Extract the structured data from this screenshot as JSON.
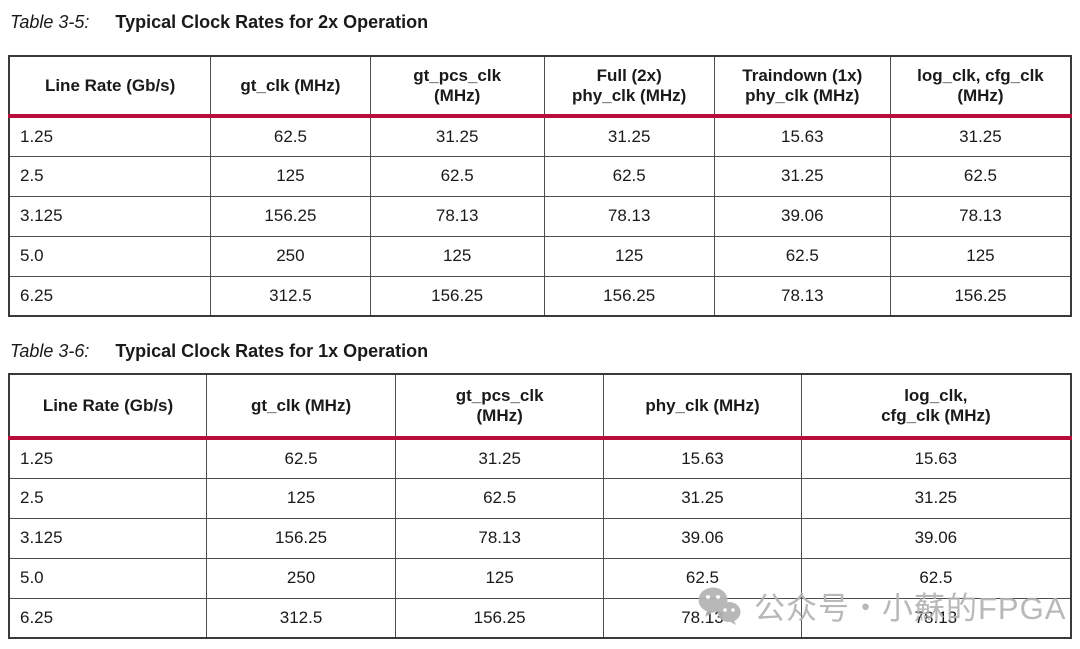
{
  "colors": {
    "accent_rule": "#b90d3c",
    "outer_border": "#3a3a3a",
    "inner_border": "#4d4d4d",
    "text": "#1a1a1a",
    "watermark": "#b2b2b2"
  },
  "tables": [
    {
      "caption_label": "Table 3-5:",
      "caption_title": "Typical Clock Rates for 2x Operation",
      "columns": [
        "Line Rate (Gb/s)",
        "gt_clk (MHz)",
        "gt_pcs_clk\n(MHz)",
        "Full (2x)\nphy_clk (MHz)",
        "Traindown (1x)\nphy_clk (MHz)",
        "log_clk, cfg_clk\n(MHz)"
      ],
      "rows": [
        [
          "1.25",
          "62.5",
          "31.25",
          "31.25",
          "15.63",
          "31.25"
        ],
        [
          "2.5",
          "125",
          "62.5",
          "62.5",
          "31.25",
          "62.5"
        ],
        [
          "3.125",
          "156.25",
          "78.13",
          "78.13",
          "39.06",
          "78.13"
        ],
        [
          "5.0",
          "250",
          "125",
          "125",
          "62.5",
          "125"
        ],
        [
          "6.25",
          "312.5",
          "156.25",
          "156.25",
          "78.13",
          "156.25"
        ]
      ]
    },
    {
      "caption_label": "Table 3-6:",
      "caption_title": "Typical Clock Rates for 1x Operation",
      "columns": [
        "Line Rate (Gb/s)",
        "gt_clk (MHz)",
        "gt_pcs_clk\n(MHz)",
        "phy_clk (MHz)",
        "log_clk,\ncfg_clk (MHz)"
      ],
      "rows": [
        [
          "1.25",
          "62.5",
          "31.25",
          "15.63",
          "15.63"
        ],
        [
          "2.5",
          "125",
          "62.5",
          "31.25",
          "31.25"
        ],
        [
          "3.125",
          "156.25",
          "78.13",
          "39.06",
          "39.06"
        ],
        [
          "5.0",
          "250",
          "125",
          "62.5",
          "62.5"
        ],
        [
          "6.25",
          "312.5",
          "156.25",
          "78.13",
          "78.13"
        ]
      ]
    }
  ],
  "watermark": {
    "icon": "wechat-icon",
    "text": "公众号・小蘇的FPGA"
  }
}
